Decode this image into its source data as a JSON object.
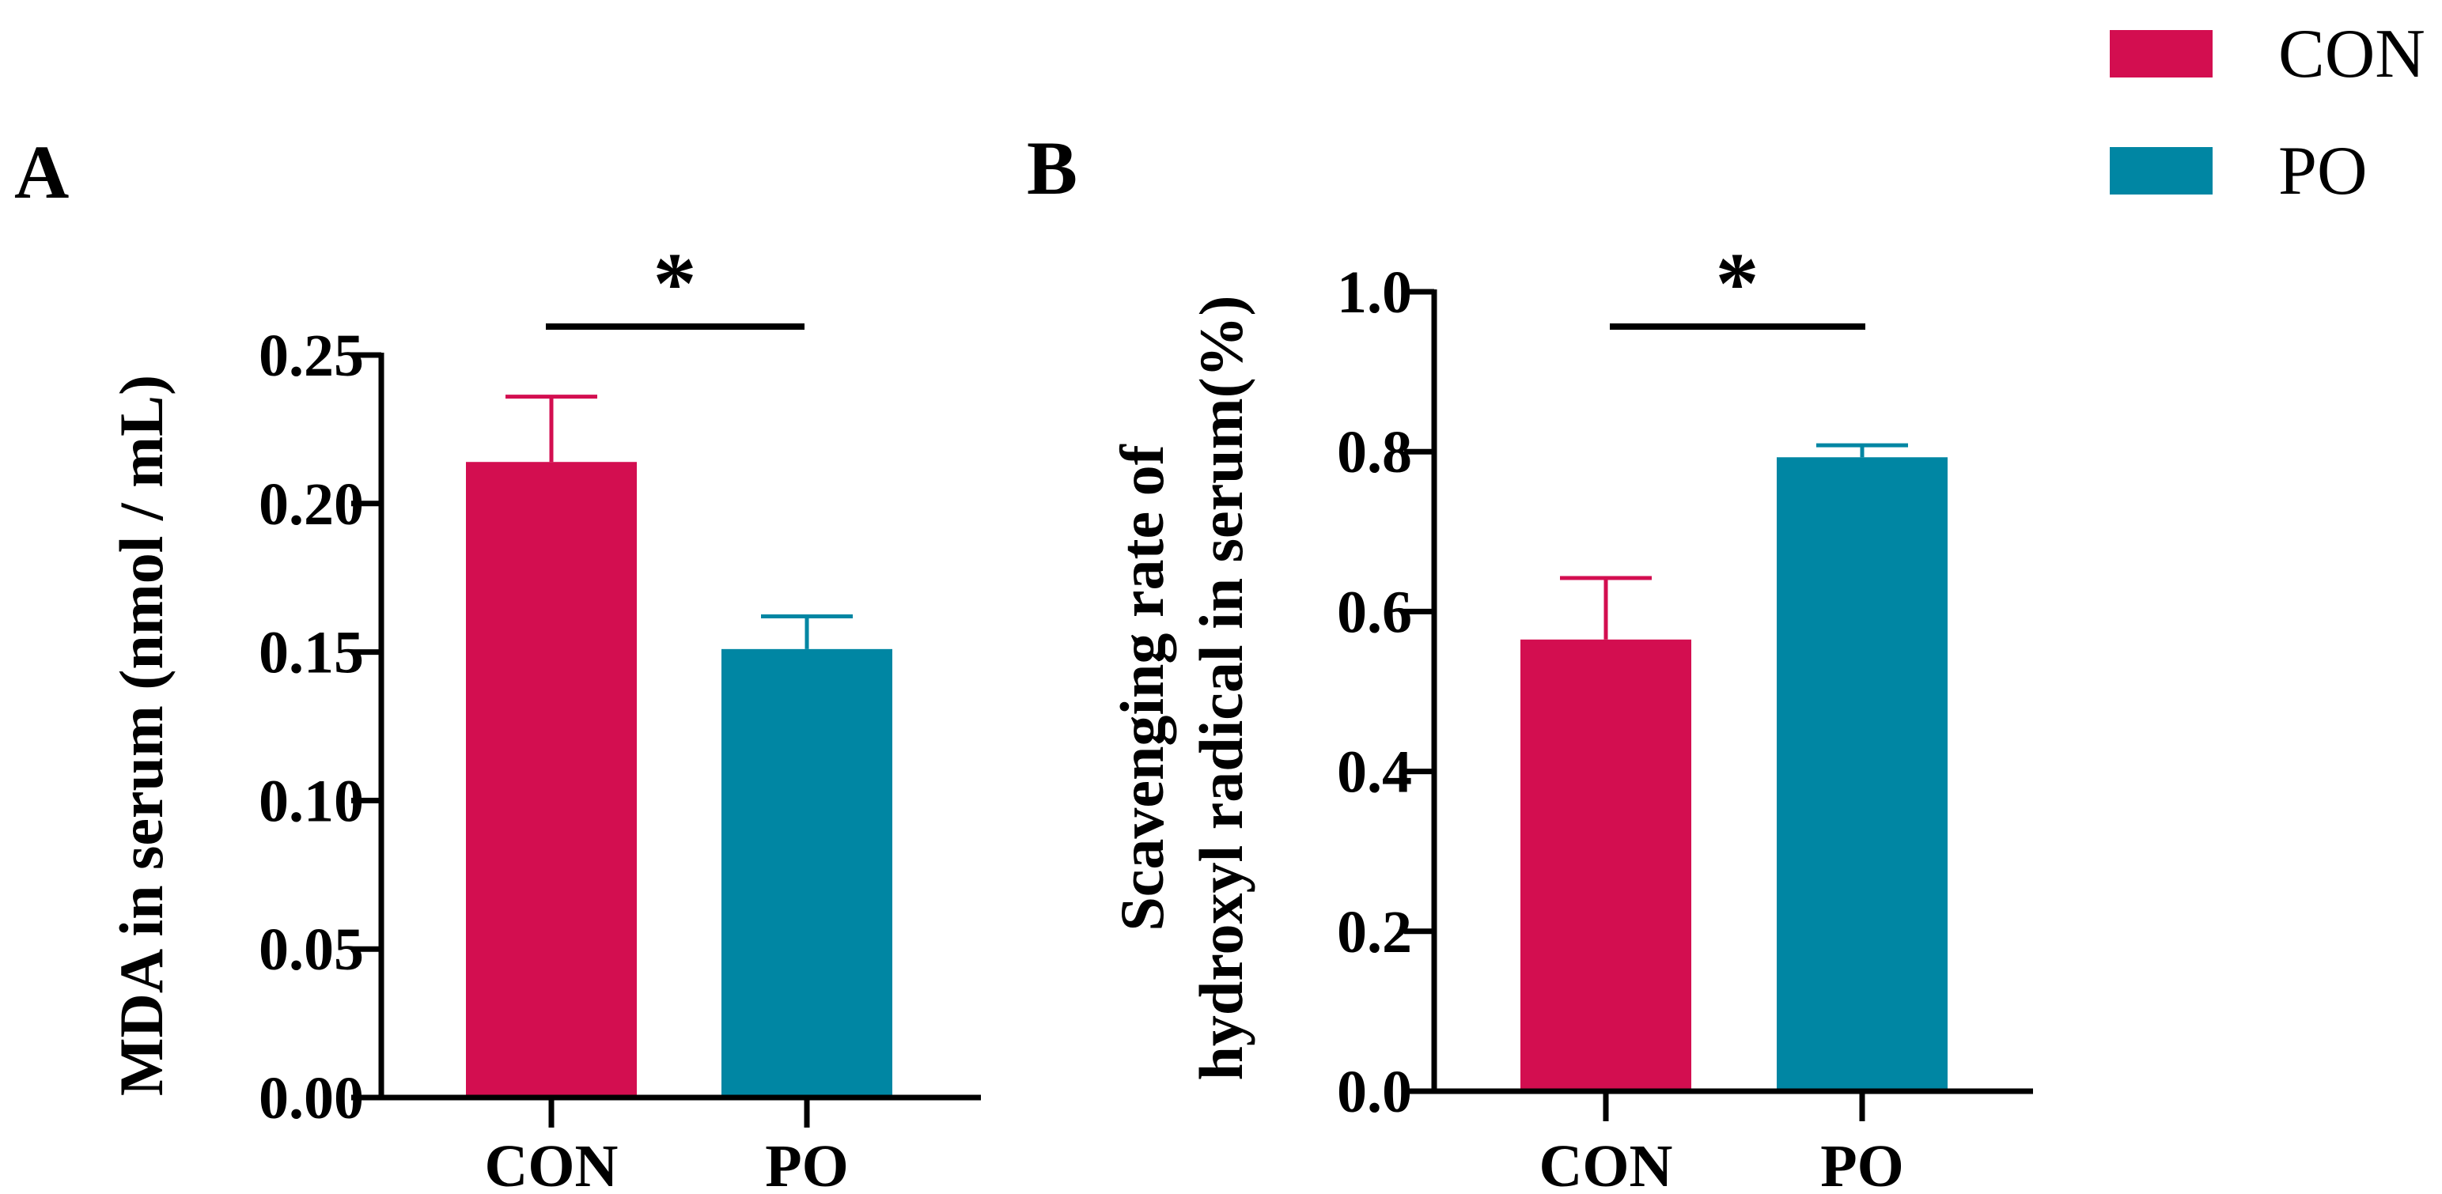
{
  "chart_data": [
    {
      "type": "bar",
      "panel": "A",
      "categories": [
        "CON",
        "PO"
      ],
      "values": [
        0.214,
        0.151
      ],
      "errors": [
        0.022,
        0.011
      ],
      "ylabel": "MDA in serum (nmol / mL)",
      "ylim": [
        0,
        0.25
      ],
      "yticks": [
        "0.00",
        "0.05",
        "0.10",
        "0.15",
        "0.20",
        "0.25"
      ],
      "significance": "*"
    },
    {
      "type": "bar",
      "panel": "B",
      "categories": [
        "CON",
        "PO"
      ],
      "values": [
        0.565,
        0.793
      ],
      "errors": [
        0.077,
        0.015
      ],
      "ylabel_lines": [
        "Scavenging rate of",
        "hydroxyl radical in serum(%)"
      ],
      "ylim": [
        0,
        1.0
      ],
      "yticks": [
        "0.0",
        "0.2",
        "0.4",
        "0.6",
        "0.8",
        "1.0"
      ],
      "significance": "*"
    }
  ],
  "legend": [
    {
      "label": "CON",
      "color": "#d30e50"
    },
    {
      "label": "PO",
      "color": "#0086a3"
    }
  ]
}
